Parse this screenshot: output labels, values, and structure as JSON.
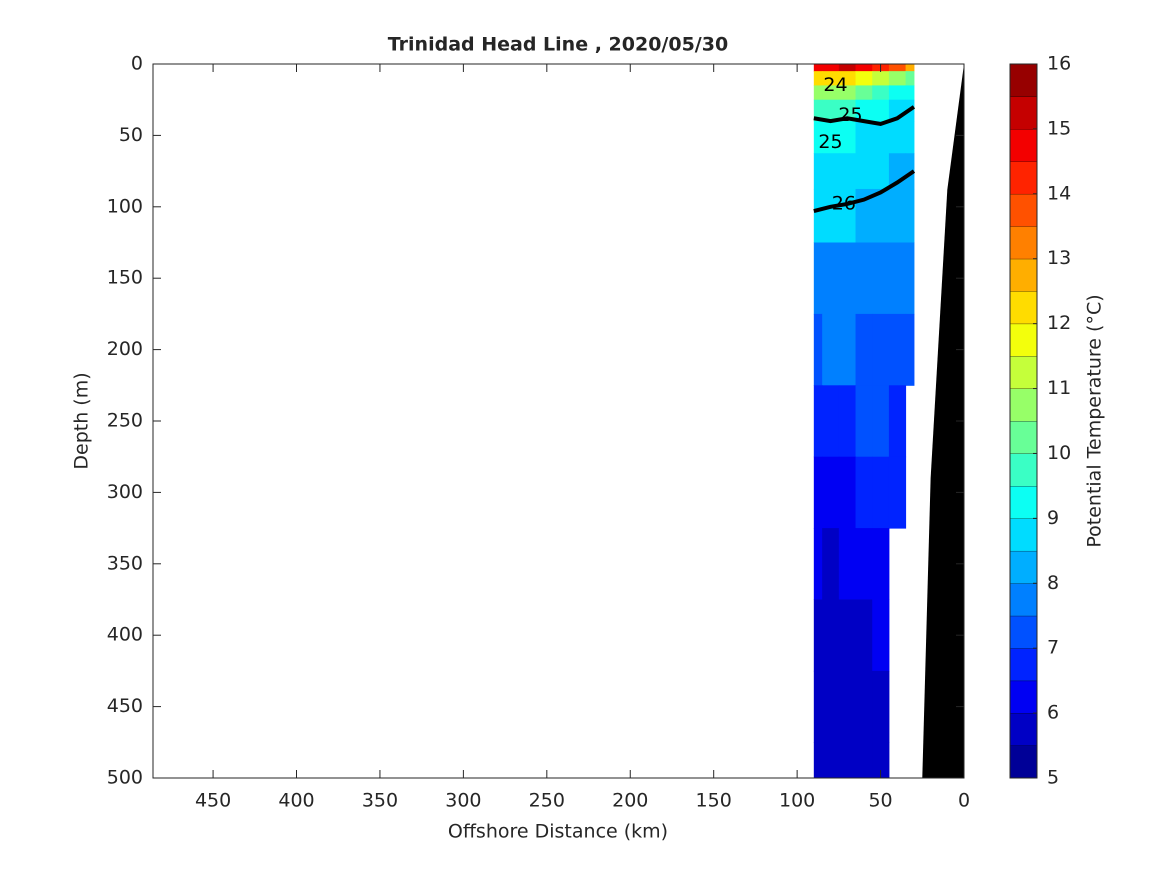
{
  "chart_data": {
    "type": "contour",
    "title": "Trinidad Head Line , 2020/05/30",
    "xlabel": "Offshore Distance (km)",
    "ylabel": "Depth (m)",
    "colorbar_label": "Potential Temperature (°C)",
    "xlim": [
      486,
      0
    ],
    "xticks": [
      450,
      400,
      350,
      300,
      250,
      200,
      150,
      100,
      50,
      0
    ],
    "ylim": [
      0,
      500
    ],
    "yticks": [
      0,
      50,
      100,
      150,
      200,
      250,
      300,
      350,
      400,
      450,
      500
    ],
    "clim": [
      5,
      16
    ],
    "cticks": [
      5,
      6,
      7,
      8,
      9,
      10,
      11,
      12,
      13,
      14,
      15,
      16
    ],
    "level_step": 0.5,
    "x": [
      90,
      80,
      70,
      60,
      50,
      40,
      30
    ],
    "depth": [
      0,
      10,
      20,
      30,
      50,
      75,
      100,
      150,
      200,
      250,
      300,
      350,
      400,
      450,
      500
    ],
    "values": [
      [
        14.5,
        14.8,
        15.0,
        14.6,
        14.2,
        13.5,
        12.5
      ],
      [
        12.0,
        12.3,
        12.0,
        11.5,
        11.0,
        10.5,
        10.0
      ],
      [
        10.5,
        10.8,
        10.6,
        10.2,
        9.8,
        9.3,
        9.0
      ],
      [
        9.5,
        9.8,
        9.6,
        9.4,
        9.1,
        8.9,
        8.8
      ],
      [
        9.0,
        9.2,
        9.1,
        8.9,
        8.8,
        8.6,
        8.5
      ],
      [
        8.8,
        8.9,
        8.8,
        8.6,
        8.5,
        8.4,
        8.3
      ],
      [
        8.5,
        8.6,
        8.5,
        8.4,
        8.3,
        8.2,
        8.1
      ],
      [
        7.8,
        7.9,
        7.8,
        7.7,
        7.7,
        7.6,
        7.6
      ],
      [
        7.4,
        7.5,
        7.5,
        7.4,
        7.4,
        7.3,
        7.3
      ],
      [
        6.8,
        6.9,
        6.9,
        7.0,
        7.0,
        6.9,
        null
      ],
      [
        6.4,
        6.3,
        6.4,
        6.6,
        6.8,
        6.7,
        null
      ],
      [
        6.0,
        5.9,
        6.2,
        6.1,
        6.2,
        null,
        null
      ],
      [
        5.8,
        5.8,
        5.9,
        5.9,
        6.0,
        null,
        null
      ],
      [
        5.6,
        5.6,
        5.7,
        5.7,
        5.8,
        null,
        null
      ],
      [
        5.5,
        5.5,
        5.5,
        5.6,
        5.6,
        null,
        null
      ]
    ],
    "contours": [
      {
        "x": [
          90,
          80,
          70,
          60,
          50,
          40,
          30
        ],
        "depth": [
          38,
          40,
          38,
          40,
          42,
          38,
          30
        ]
      },
      {
        "x": [
          90,
          80,
          70,
          60,
          50,
          40,
          30
        ],
        "depth": [
          103,
          100,
          98,
          95,
          90,
          83,
          75
        ]
      }
    ],
    "contour_labels": [
      {
        "text": "24",
        "x": 77,
        "depth": 15
      },
      {
        "text": "25",
        "x": 68,
        "depth": 36
      },
      {
        "text": "25",
        "x": 80,
        "depth": 55
      },
      {
        "text": "26",
        "x": 72,
        "depth": 98
      }
    ],
    "bathymetry": {
      "x": [
        0,
        10,
        20,
        25
      ],
      "depth": [
        0,
        88,
        290,
        500
      ],
      "color": "#000000"
    }
  }
}
